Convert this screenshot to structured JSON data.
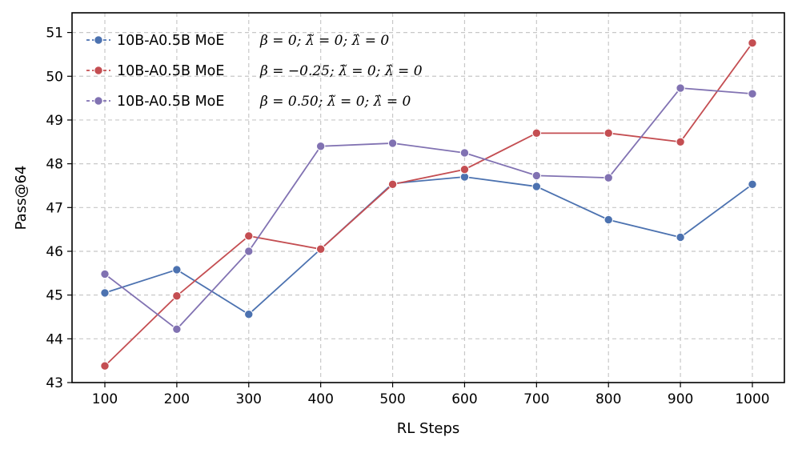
{
  "chart_data": {
    "type": "line",
    "title": "",
    "xlabel": "RL Steps",
    "ylabel": "Pass@64",
    "x": [
      100,
      200,
      300,
      400,
      500,
      600,
      700,
      800,
      900,
      1000
    ],
    "x_tick_labels": [
      "100",
      "200",
      "300",
      "400",
      "500",
      "600",
      "700",
      "800",
      "900",
      "1000"
    ],
    "y_ticks": [
      43,
      44,
      45,
      46,
      47,
      48,
      49,
      50,
      51
    ],
    "y_tick_labels": [
      "43",
      "44",
      "45",
      "46",
      "47",
      "48",
      "49",
      "50",
      "51"
    ],
    "ylim": [
      43,
      51.45
    ],
    "grid": true,
    "legend_position": "top-left",
    "series": [
      {
        "name": "10B-A0.5B MoE",
        "label_math": "β = 0;  λ̃ = 0;  λ̂ = 0",
        "color": "#4c72b0",
        "values": [
          45.05,
          45.58,
          44.56,
          46.05,
          47.55,
          47.7,
          47.48,
          46.72,
          46.32,
          47.53
        ]
      },
      {
        "name": "10B-A0.5B MoE",
        "label_math": "β = −0.25;  λ̃ = 0;  λ̂ = 0",
        "color": "#c44e52",
        "values": [
          43.38,
          44.98,
          46.35,
          46.05,
          47.53,
          47.87,
          48.7,
          48.7,
          48.5,
          50.76
        ]
      },
      {
        "name": "10B-A0.5B MoE",
        "label_math": "β = 0.50;  λ̃ = 0;  λ̂ = 0",
        "color": "#8172b2",
        "values": [
          45.48,
          44.22,
          46.0,
          48.4,
          48.47,
          48.25,
          47.73,
          47.68,
          49.73,
          49.6
        ]
      }
    ]
  }
}
